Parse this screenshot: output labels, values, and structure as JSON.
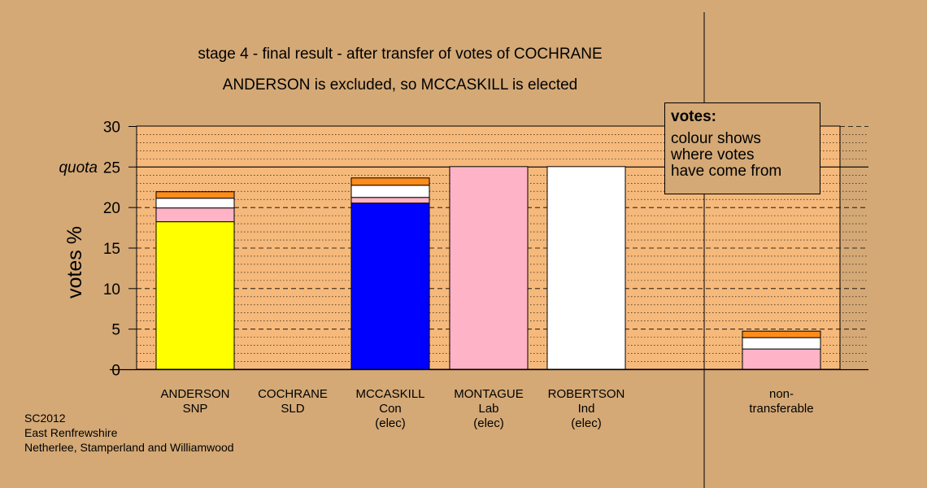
{
  "header": {
    "title": "stage 4 - final result - after transfer of votes of COCHRANE",
    "subtitle": "ANDERSON is excluded, so MCCASKILL is elected"
  },
  "legend": {
    "title": "votes:",
    "lines": [
      "colour shows",
      "where votes",
      "have come from"
    ]
  },
  "footer": {
    "lines": [
      "SC2012",
      "East Renfrewshire",
      "Netherlee, Stamperland and Williamwood"
    ]
  },
  "colors": {
    "background": "#d4a976",
    "plot_background": "#f5b97b",
    "SNP": "#ffff00",
    "Con": "#0000ff",
    "Lab": "#ffb3c6",
    "Ind": "#ffffff",
    "SLD": "#ff8c1a"
  },
  "chart_data": {
    "type": "bar",
    "stacked": true,
    "ylabel": "votes %",
    "ylim": [
      0,
      30
    ],
    "yticks": [
      0,
      5,
      10,
      15,
      20,
      25,
      30
    ],
    "quota": {
      "label": "quota",
      "value": 25
    },
    "grid": "dotted every 1%, dashed every 5%",
    "categories": [
      {
        "lines": [
          "ANDERSON",
          "SNP"
        ]
      },
      {
        "lines": [
          "COCHRANE",
          "SLD"
        ]
      },
      {
        "lines": [
          "MCCASKILL",
          "Con",
          "(elec)"
        ]
      },
      {
        "lines": [
          "MONTAGUE",
          "Lab",
          "(elec)"
        ]
      },
      {
        "lines": [
          "ROBERTSON",
          "Ind",
          "(elec)"
        ]
      },
      {
        "lines": [
          "non-",
          "transferable"
        ]
      }
    ],
    "bars": [
      {
        "segments": [
          {
            "source": "SNP",
            "value": 18.2
          },
          {
            "source": "Lab",
            "value": 1.7
          },
          {
            "source": "Ind",
            "value": 1.2
          },
          {
            "source": "SLD",
            "value": 0.8
          }
        ]
      },
      {
        "segments": []
      },
      {
        "segments": [
          {
            "source": "Con",
            "value": 20.5
          },
          {
            "source": "Lab",
            "value": 0.7
          },
          {
            "source": "Ind",
            "value": 1.5
          },
          {
            "source": "SLD",
            "value": 0.9
          }
        ]
      },
      {
        "segments": [
          {
            "source": "Lab",
            "value": 25.0
          }
        ]
      },
      {
        "segments": [
          {
            "source": "Ind",
            "value": 25.0
          }
        ]
      },
      {
        "segments": [
          {
            "source": "Lab",
            "value": 2.5
          },
          {
            "source": "Ind",
            "value": 1.4
          },
          {
            "source": "SLD",
            "value": 0.8
          }
        ]
      }
    ]
  }
}
